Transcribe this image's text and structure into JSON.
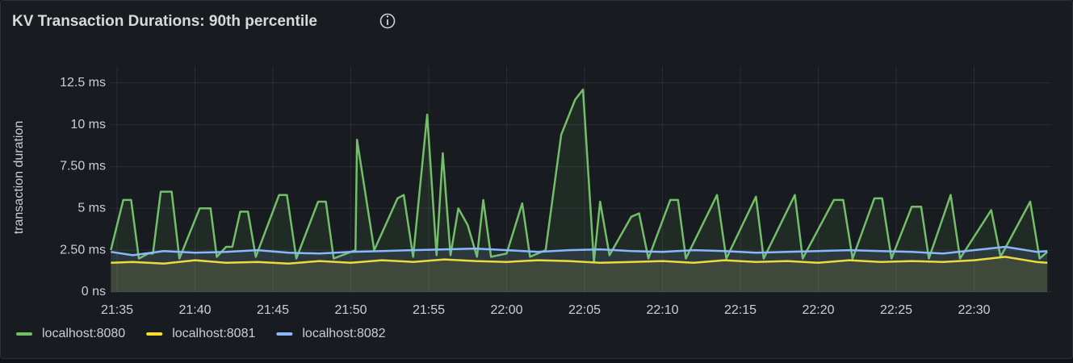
{
  "chart_data": {
    "type": "line",
    "title": "KV Transaction Durations: 90th percentile",
    "y_label": "transaction duration",
    "xlim": [
      -0.4,
      59.7
    ],
    "xticks": [
      {
        "value": 0,
        "label": "21:35"
      },
      {
        "value": 5,
        "label": "21:40"
      },
      {
        "value": 10,
        "label": "21:45"
      },
      {
        "value": 15,
        "label": "21:50"
      },
      {
        "value": 20,
        "label": "21:55"
      },
      {
        "value": 25,
        "label": "22:00"
      },
      {
        "value": 30,
        "label": "22:05"
      },
      {
        "value": 35,
        "label": "22:10"
      },
      {
        "value": 40,
        "label": "22:15"
      },
      {
        "value": 45,
        "label": "22:20"
      },
      {
        "value": 50,
        "label": "22:25"
      },
      {
        "value": 55,
        "label": "22:30"
      }
    ],
    "ylim": [
      0,
      13.5
    ],
    "yticks": [
      {
        "value": 0,
        "label": "0 ns"
      },
      {
        "value": 2.5,
        "label": "2.50 ms"
      },
      {
        "value": 5,
        "label": "5 ms"
      },
      {
        "value": 7.5,
        "label": "7.50 ms"
      },
      {
        "value": 10,
        "label": "10 ms"
      },
      {
        "value": 12.5,
        "label": "12.5 ms"
      }
    ],
    "grid": true,
    "legend": "bottom",
    "series": [
      {
        "name": "localhost:8080",
        "color": "#73bf69",
        "x": [
          -0.4,
          0.4,
          0.9,
          1.4,
          2.0,
          2.3,
          2.8,
          3.5,
          4.0,
          5.3,
          6.0,
          6.4,
          7.0,
          7.4,
          7.9,
          8.4,
          8.9,
          10.4,
          10.9,
          11.5,
          12.9,
          13.4,
          13.9,
          15.3,
          15.4,
          16.5,
          18.0,
          18.4,
          19.0,
          19.9,
          20.5,
          20.9,
          21.4,
          21.9,
          22.5,
          23.1,
          23.5,
          24.0,
          25.0,
          26.0,
          26.5,
          27.5,
          28.5,
          29.4,
          29.9,
          30.6,
          31.0,
          31.6,
          33.0,
          33.5,
          34.1,
          35.5,
          36.0,
          36.5,
          38.5,
          39.1,
          41.0,
          41.5,
          43.5,
          44.0,
          46.0,
          46.6,
          47.2,
          48.6,
          49.1,
          49.7,
          51.0,
          51.6,
          52.1,
          53.5,
          54.1,
          56.1,
          56.7,
          58.6,
          59.2,
          59.7
        ],
        "values": [
          2.5,
          5.5,
          5.5,
          2.0,
          2.3,
          2.3,
          6.0,
          6.0,
          2.0,
          5.0,
          5.0,
          2.1,
          2.7,
          2.7,
          4.8,
          4.8,
          2.1,
          5.8,
          5.8,
          2.0,
          5.4,
          5.4,
          2.0,
          2.5,
          9.1,
          2.5,
          5.6,
          5.8,
          2.1,
          10.6,
          2.2,
          8.3,
          2.2,
          5.0,
          4.0,
          2.1,
          5.5,
          2.1,
          2.3,
          5.3,
          2.1,
          2.5,
          9.4,
          11.5,
          12.1,
          1.8,
          5.4,
          2.2,
          4.5,
          4.7,
          2.0,
          5.5,
          5.5,
          2.0,
          5.8,
          2.0,
          5.7,
          2.0,
          5.8,
          2.0,
          5.5,
          5.5,
          2.0,
          5.6,
          5.6,
          2.0,
          5.1,
          5.1,
          2.0,
          5.8,
          2.0,
          4.9,
          2.1,
          5.4,
          2.0,
          2.4
        ]
      },
      {
        "name": "localhost:8081",
        "color": "#fade2a",
        "x": [
          -0.4,
          1,
          3,
          5,
          7,
          9,
          11,
          13,
          15,
          17,
          19,
          21,
          23,
          25,
          27,
          29,
          31,
          33,
          35,
          37,
          39,
          41,
          43,
          45,
          47,
          49,
          51,
          53,
          55,
          57,
          59,
          59.7
        ],
        "values": [
          1.75,
          1.8,
          1.7,
          1.9,
          1.75,
          1.8,
          1.7,
          1.85,
          1.75,
          1.9,
          1.8,
          1.95,
          1.85,
          1.8,
          1.9,
          1.85,
          1.75,
          1.8,
          1.85,
          1.75,
          1.9,
          1.8,
          1.85,
          1.75,
          1.9,
          1.8,
          1.85,
          1.8,
          1.9,
          2.1,
          1.8,
          1.75
        ]
      },
      {
        "name": "localhost:8082",
        "color": "#8ab8ff",
        "x": [
          -0.4,
          1,
          3,
          5,
          7,
          9,
          11,
          13,
          15,
          17,
          19,
          21,
          23,
          25,
          27,
          29,
          31,
          33,
          35,
          37,
          39,
          41,
          43,
          45,
          47,
          49,
          51,
          53,
          55,
          57,
          59,
          59.7
        ],
        "values": [
          2.4,
          2.2,
          2.45,
          2.35,
          2.4,
          2.5,
          2.35,
          2.3,
          2.4,
          2.45,
          2.5,
          2.55,
          2.6,
          2.5,
          2.4,
          2.5,
          2.55,
          2.45,
          2.4,
          2.5,
          2.45,
          2.35,
          2.4,
          2.45,
          2.5,
          2.45,
          2.4,
          2.3,
          2.5,
          2.7,
          2.4,
          2.45
        ]
      }
    ]
  }
}
